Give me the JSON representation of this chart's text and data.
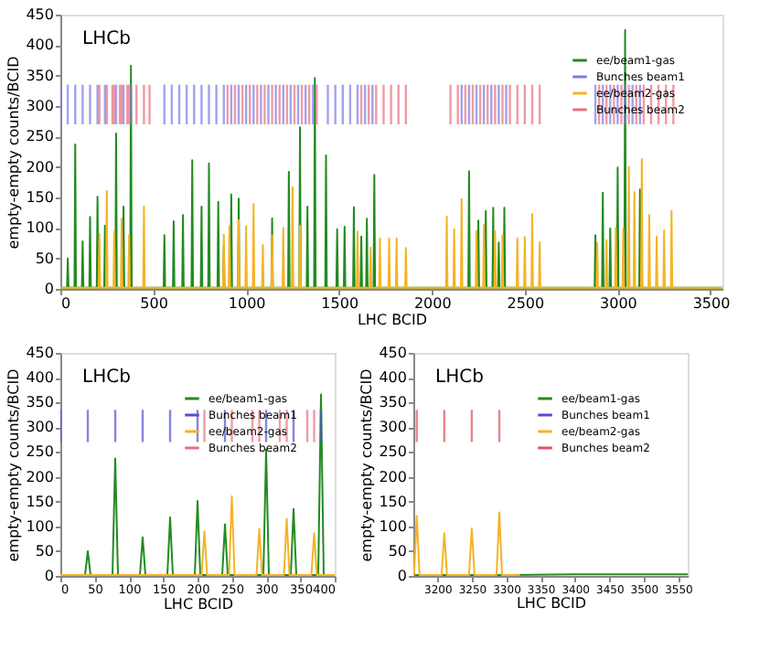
{
  "chart_data": [
    {
      "type": "line",
      "xlabel": "LHC BCID",
      "ylabel": "empty-empty counts/BCID",
      "annotations": [
        "LHCb"
      ],
      "xlim": [
        0,
        3564
      ],
      "xticks": [
        0,
        500,
        1000,
        1500,
        2000,
        2500,
        3000,
        3500
      ],
      "ylim": [
        0,
        450
      ],
      "yticks": [
        0,
        50,
        100,
        150,
        200,
        250,
        300,
        350,
        400,
        450
      ],
      "legend": "top right",
      "line_style": "solid",
      "series": [
        {
          "name": "ee/beam1-gas",
          "color": "#228b22",
          "x": [
            0,
            36,
            40,
            44,
            76,
            80,
            84,
            116,
            120,
            124,
            156,
            160,
            164,
            196,
            200,
            204,
            236,
            240,
            244,
            296,
            300,
            304,
            336,
            340,
            344,
            376,
            380,
            384,
            556,
            560,
            564,
            606,
            610,
            614,
            656,
            660,
            664,
            706,
            710,
            714,
            756,
            760,
            764,
            796,
            800,
            804,
            846,
            850,
            854,
            876,
            880,
            884,
            916,
            920,
            924,
            956,
            960,
            964,
            1136,
            1140,
            1144,
            1226,
            1230,
            1234,
            1286,
            1290,
            1294,
            1326,
            1330,
            1334,
            1366,
            1370,
            1374,
            1426,
            1430,
            1434,
            1486,
            1490,
            1494,
            1526,
            1530,
            1534,
            1576,
            1580,
            1584,
            1616,
            1620,
            1624,
            1646,
            1650,
            1654,
            1686,
            1690,
            1694,
            2196,
            2200,
            2204,
            2246,
            2250,
            2254,
            2286,
            2290,
            2294,
            2326,
            2330,
            2334,
            2356,
            2360,
            2364,
            2386,
            2390,
            2394,
            2876,
            2880,
            2884,
            2916,
            2920,
            2924,
            2956,
            2960,
            2964,
            2996,
            3000,
            3004,
            3036,
            3040,
            3044,
            3116,
            3120,
            3124,
            3564
          ],
          "values": [
            2,
            2,
            50,
            2,
            2,
            237,
            2,
            2,
            78,
            2,
            2,
            118,
            2,
            2,
            151,
            2,
            2,
            104,
            2,
            2,
            255,
            2,
            2,
            135,
            2,
            2,
            366,
            2,
            2,
            88,
            2,
            2,
            111,
            2,
            2,
            121,
            2,
            2,
            211,
            2,
            2,
            135,
            2,
            2,
            206,
            2,
            2,
            143,
            2,
            2,
            71,
            2,
            2,
            155,
            2,
            2,
            148,
            2,
            2,
            116,
            2,
            2,
            192,
            2,
            2,
            265,
            2,
            2,
            135,
            2,
            2,
            346,
            2,
            2,
            219,
            2,
            2,
            98,
            2,
            2,
            102,
            2,
            2,
            134,
            2,
            2,
            86,
            2,
            2,
            115,
            2,
            2,
            187,
            2,
            2,
            193,
            2,
            2,
            112,
            2,
            2,
            128,
            2,
            2,
            133,
            2,
            2,
            76,
            2,
            2,
            133,
            2,
            2,
            88,
            2,
            2,
            158,
            2,
            2,
            99,
            2,
            2,
            199,
            2,
            2,
            425,
            2,
            2,
            163,
            2,
            2
          ]
        },
        {
          "name": "Bunches beam1",
          "color": "#7b7be6",
          "type": "bar",
          "x": [
            0,
            40,
            80,
            120,
            160,
            200,
            240,
            300,
            340,
            380,
            560,
            600,
            640,
            680,
            720,
            760,
            800,
            840,
            880,
            920,
            960,
            1000,
            1040,
            1080,
            1120,
            1160,
            1200,
            1240,
            1280,
            1320,
            1360,
            1440,
            1480,
            1520,
            1560,
            1600,
            1640,
            1680,
            2160,
            2200,
            2240,
            2280,
            2320,
            2360,
            2400,
            2880,
            2920,
            2960,
            3000,
            3040,
            3080,
            3120
          ],
          "values": [
            65,
            65,
            65,
            65,
            65,
            65,
            65,
            65,
            65,
            65,
            65,
            65,
            65,
            65,
            65,
            65,
            65,
            65,
            65,
            65,
            65,
            65,
            65,
            65,
            65,
            65,
            65,
            65,
            65,
            65,
            65,
            65,
            65,
            65,
            65,
            65,
            65,
            65,
            65,
            65,
            65,
            65,
            65,
            65,
            65,
            65,
            65,
            65,
            65,
            65,
            65,
            65
          ],
          "base": [
            270,
            270,
            270,
            270,
            270,
            270,
            270,
            270,
            270,
            270,
            270,
            270,
            270,
            270,
            270,
            270,
            270,
            270,
            270,
            270,
            270,
            270,
            270,
            270,
            270,
            270,
            270,
            270,
            270,
            270,
            270,
            270,
            270,
            270,
            270,
            270,
            270,
            270,
            270,
            270,
            270,
            270,
            270,
            270,
            270,
            270,
            270,
            270,
            270,
            270,
            270,
            270
          ]
        },
        {
          "name": "ee/beam2-gas",
          "color": "#f5b325",
          "x": [
            0,
            206,
            210,
            214,
            246,
            250,
            254,
            286,
            290,
            294,
            326,
            330,
            334,
            366,
            370,
            374,
            446,
            450,
            454,
            876,
            880,
            884,
            906,
            910,
            914,
            956,
            960,
            964,
            996,
            1000,
            1004,
            1036,
            1040,
            1044,
            1086,
            1090,
            1094,
            1136,
            1140,
            1144,
            1196,
            1200,
            1204,
            1246,
            1250,
            1254,
            1286,
            1290,
            1294,
            1596,
            1600,
            1604,
            1666,
            1670,
            1674,
            1716,
            1720,
            1724,
            1766,
            1770,
            1774,
            1806,
            1810,
            1814,
            1856,
            1860,
            1864,
            2076,
            2080,
            2084,
            2116,
            2120,
            2124,
            2156,
            2160,
            2164,
            2236,
            2240,
            2244,
            2276,
            2280,
            2284,
            2336,
            2340,
            2344,
            2376,
            2380,
            2384,
            2456,
            2460,
            2464,
            2496,
            2500,
            2504,
            2536,
            2540,
            2544,
            2576,
            2580,
            2584,
            2886,
            2890,
            2894,
            2936,
            2940,
            2944,
            2986,
            2990,
            2994,
            3026,
            3030,
            3034,
            3056,
            3060,
            3064,
            3086,
            3090,
            3094,
            3126,
            3130,
            3134,
            3166,
            3170,
            3174,
            3206,
            3210,
            3214,
            3246,
            3250,
            3254,
            3286,
            3290,
            3294,
            3564
          ],
          "values": [
            2,
            2,
            90,
            2,
            2,
            161,
            2,
            2,
            95,
            2,
            2,
            115,
            2,
            2,
            88,
            2,
            2,
            135,
            2,
            2,
            89,
            2,
            2,
            103,
            2,
            2,
            113,
            2,
            2,
            103,
            2,
            2,
            139,
            2,
            2,
            72,
            2,
            2,
            88,
            2,
            2,
            100,
            2,
            2,
            167,
            2,
            2,
            104,
            2,
            2,
            94,
            2,
            2,
            68,
            2,
            2,
            83,
            2,
            2,
            83,
            2,
            2,
            83,
            2,
            2,
            67,
            2,
            2,
            119,
            2,
            2,
            98,
            2,
            2,
            147,
            2,
            2,
            95,
            2,
            2,
            105,
            2,
            2,
            95,
            2,
            2,
            88,
            2,
            2,
            83,
            2,
            2,
            85,
            2,
            2,
            123,
            2,
            2,
            77,
            2,
            2,
            76,
            2,
            2,
            80,
            2,
            2,
            100,
            2,
            2,
            99,
            2,
            2,
            200,
            2,
            2,
            159,
            2,
            2,
            213,
            2,
            2,
            121,
            2,
            2,
            86,
            2,
            2,
            96,
            2,
            2,
            128,
            2,
            2
          ]
        },
        {
          "name": "Bunches beam2",
          "color": "#e8707f",
          "type": "bar",
          "x": [
            210,
            250,
            280,
            290,
            320,
            330,
            360,
            370,
            410,
            450,
            480,
            900,
            940,
            980,
            1020,
            1060,
            1100,
            1140,
            1180,
            1220,
            1260,
            1300,
            1340,
            1380,
            1620,
            1660,
            1700,
            1740,
            1780,
            1820,
            1860,
            2100,
            2140,
            2180,
            2220,
            2260,
            2300,
            2340,
            2380,
            2420,
            2460,
            2500,
            2540,
            2580,
            2900,
            2940,
            2980,
            3020,
            3060,
            3100,
            3140,
            3180,
            3220,
            3260,
            3300
          ],
          "values": [
            65,
            65,
            65,
            65,
            65,
            65,
            65,
            65,
            65,
            65,
            65,
            65,
            65,
            65,
            65,
            65,
            65,
            65,
            65,
            65,
            65,
            65,
            65,
            65,
            65,
            65,
            65,
            65,
            65,
            65,
            65,
            65,
            65,
            65,
            65,
            65,
            65,
            65,
            65,
            65,
            65,
            65,
            65,
            65,
            65,
            65,
            65,
            65,
            65,
            65,
            65,
            65,
            65,
            65,
            65
          ],
          "base": [
            270,
            270,
            270,
            270,
            270,
            270,
            270,
            270,
            270,
            270,
            270,
            270,
            270,
            270,
            270,
            270,
            270,
            270,
            270,
            270,
            270,
            270,
            270,
            270,
            270,
            270,
            270,
            270,
            270,
            270,
            270,
            270,
            270,
            270,
            270,
            270,
            270,
            270,
            270,
            270,
            270,
            270,
            270,
            270,
            270,
            270,
            270,
            270,
            270,
            270,
            270,
            270,
            270,
            270,
            270
          ]
        }
      ]
    },
    {
      "type": "line",
      "xlabel": "LHC BCID",
      "ylabel": "empty-empty counts/BCID",
      "annotations": [
        "LHCb"
      ],
      "xlim": [
        0,
        400
      ],
      "xticks": [
        0,
        50,
        100,
        150,
        200,
        250,
        300,
        350,
        400
      ],
      "ylim": [
        0,
        450
      ],
      "yticks": [
        0,
        50,
        100,
        150,
        200,
        250,
        300,
        350,
        400,
        450
      ],
      "legend": "top right",
      "line_style": "solid",
      "series": [
        {
          "name": "ee/beam1-gas",
          "color": "#228b22",
          "x": [
            0,
            36,
            40,
            44,
            76,
            80,
            84,
            116,
            120,
            124,
            156,
            160,
            164,
            196,
            200,
            204,
            236,
            240,
            244,
            296,
            300,
            304,
            336,
            340,
            344,
            376,
            380,
            384,
            400
          ],
          "values": [
            2,
            2,
            50,
            2,
            2,
            237,
            2,
            2,
            78,
            2,
            2,
            118,
            2,
            2,
            151,
            2,
            2,
            104,
            2,
            2,
            255,
            2,
            2,
            135,
            2,
            2,
            366,
            2,
            2
          ]
        },
        {
          "name": "Bunches beam1",
          "color": "#5050d0",
          "type": "bar",
          "x": [
            0,
            40,
            80,
            120,
            160,
            200,
            240,
            300,
            340,
            380
          ],
          "values": [
            65,
            65,
            65,
            65,
            65,
            65,
            65,
            65,
            65,
            65
          ],
          "base": [
            270,
            270,
            270,
            270,
            270,
            270,
            270,
            270,
            270,
            270
          ]
        },
        {
          "name": "ee/beam2-gas",
          "color": "#f5b325",
          "x": [
            0,
            206,
            210,
            214,
            246,
            250,
            254,
            286,
            290,
            294,
            326,
            330,
            334,
            366,
            370,
            374,
            400
          ],
          "values": [
            2,
            2,
            90,
            2,
            2,
            161,
            2,
            2,
            95,
            2,
            2,
            115,
            2,
            2,
            86,
            2,
            2
          ]
        },
        {
          "name": "Bunches beam2",
          "color": "#e8707f",
          "type": "bar",
          "x": [
            210,
            250,
            280,
            290,
            320,
            330,
            360,
            370
          ],
          "values": [
            65,
            65,
            65,
            65,
            65,
            65,
            65,
            65
          ],
          "base": [
            270,
            270,
            270,
            270,
            270,
            270,
            270,
            270
          ]
        }
      ]
    },
    {
      "type": "line",
      "xlabel": "LHC BCID",
      "ylabel": "empty-empty counts/BCID",
      "annotations": [
        "LHCb"
      ],
      "xlim": [
        3165,
        3564
      ],
      "xticks": [
        3200,
        3250,
        3300,
        3350,
        3400,
        3450,
        3500,
        3550
      ],
      "ylim": [
        0,
        450
      ],
      "yticks": [
        0,
        50,
        100,
        150,
        200,
        250,
        300,
        350,
        400,
        450
      ],
      "legend": "top right",
      "line_style": "solid",
      "series": [
        {
          "name": "ee/beam1-gas",
          "color": "#228b22",
          "x": [
            3165,
            3300,
            3400,
            3564
          ],
          "values": [
            2,
            2,
            3,
            3
          ]
        },
        {
          "name": "Bunches beam1",
          "color": "#5050d0",
          "type": "bar"
        },
        {
          "name": "ee/beam2-gas",
          "color": "#f5b325",
          "x": [
            3165,
            3166,
            3170,
            3174,
            3206,
            3210,
            3214,
            3246,
            3250,
            3254,
            3286,
            3290,
            3294,
            3320
          ],
          "values": [
            2,
            2,
            121,
            2,
            2,
            86,
            2,
            2,
            96,
            2,
            2,
            128,
            2,
            2
          ]
        },
        {
          "name": "Bunches beam2",
          "color": "#e05060",
          "type": "bar",
          "x": [
            3170,
            3210,
            3250,
            3290
          ],
          "values": [
            65,
            65,
            65,
            65
          ],
          "base": [
            270,
            270,
            270,
            270
          ]
        }
      ]
    }
  ]
}
